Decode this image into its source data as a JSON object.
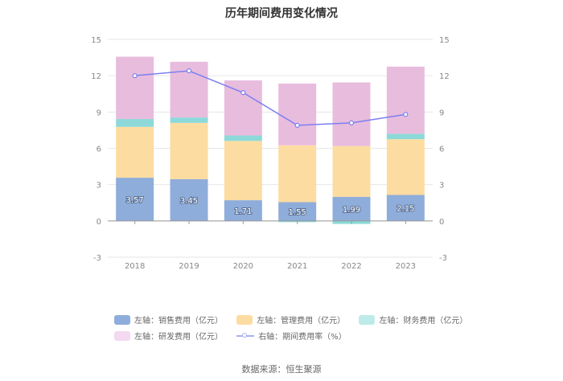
{
  "chart_data": {
    "type": "bar",
    "stacked": true,
    "title": "历年期间费用变化情况",
    "categories": [
      "2018",
      "2019",
      "2020",
      "2021",
      "2022",
      "2023"
    ],
    "left_axis": {
      "ylim": [
        -3,
        15
      ],
      "ticks": [
        "15",
        "12",
        "9",
        "6",
        "3",
        "0",
        "-3"
      ]
    },
    "right_axis": {
      "ylim": [
        -3,
        15
      ],
      "ticks": [
        "15",
        "12",
        "9",
        "6",
        "3",
        "0",
        "-3"
      ]
    },
    "series": [
      {
        "name": "左轴：销售费用（亿元）",
        "axis": "left",
        "color": "#8fadda",
        "values": [
          3.57,
          3.45,
          1.71,
          1.55,
          1.99,
          2.15
        ],
        "labels": [
          "3.57",
          "3.45",
          "1.71",
          "1.55",
          "1.99",
          "2.15"
        ]
      },
      {
        "name": "左轴：管理费用（亿元）",
        "axis": "left",
        "color": "#fddca1",
        "values": [
          4.2,
          4.65,
          4.9,
          4.7,
          4.2,
          4.6
        ]
      },
      {
        "name": "左轴：财务费用（亿元）",
        "axis": "left",
        "color": "#8dd9d9",
        "values": [
          0.65,
          0.45,
          0.45,
          -0.1,
          -0.25,
          0.45
        ]
      },
      {
        "name": "左轴：研发费用（亿元）",
        "axis": "left",
        "color": "#e8bcdd",
        "values": [
          5.15,
          4.6,
          4.55,
          5.1,
          5.25,
          5.55
        ]
      },
      {
        "name": "右轴：期间费用率（%）",
        "axis": "right",
        "type": "line",
        "color": "#7b7ff2",
        "values": [
          12.0,
          12.4,
          10.6,
          7.9,
          8.1,
          8.8
        ]
      }
    ]
  },
  "legend": {
    "sales": "左轴：销售费用（亿元）",
    "admin": "左轴：管理费用（亿元）",
    "finance": "左轴：财务费用（亿元）",
    "rd": "左轴：研发费用（亿元）",
    "rate": "右轴：期间费用率（%）"
  },
  "source": "数据来源：恒生聚源"
}
